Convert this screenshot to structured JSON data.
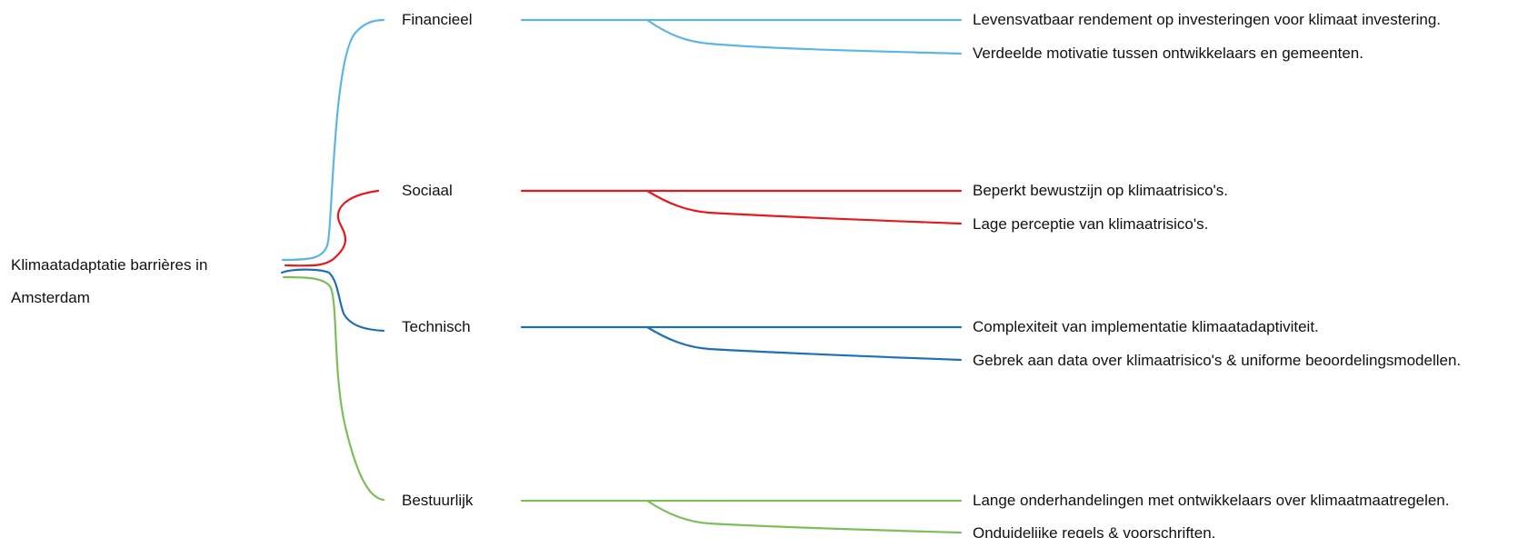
{
  "root": {
    "title": "Klimaatadaptatie barrières in Amsterdam"
  },
  "branches": [
    {
      "key": "financieel",
      "label": "Financieel",
      "color": "#5DB4E5",
      "items": [
        "Levensvatbaar rendement op investeringen voor klimaat investering.",
        "Verdeelde motivatie tussen ontwikkelaars en gemeenten."
      ]
    },
    {
      "key": "sociaal",
      "label": "Sociaal",
      "color": "#E31A1C",
      "items": [
        "Beperkt bewustzijn op klimaatrisico's.",
        "Lage perceptie van klimaatrisico's."
      ]
    },
    {
      "key": "technisch",
      "label": "Technisch",
      "color": "#1F6FB5",
      "items": [
        "Complexiteit van implementatie klimaatadaptiviteit.",
        "Gebrek aan data over klimaatrisico's & uniforme beoordelingsmodellen."
      ]
    },
    {
      "key": "bestuurlijk",
      "label": "Bestuurlijk",
      "color": "#7DBE5A",
      "items": [
        "Lange onderhandelingen met ontwikkelaars over klimaatmaatregelen.",
        "Onduidelijke regels & voorschriften."
      ]
    }
  ]
}
